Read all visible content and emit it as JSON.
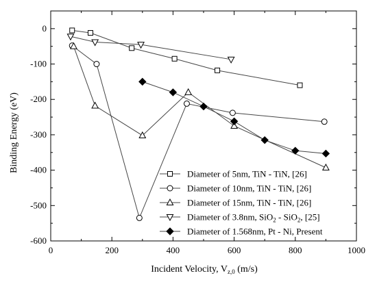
{
  "chart_data": {
    "type": "scatter",
    "xlabel": "Incident Velocity, V",
    "xlabel_sub": "z,0",
    "xlabel_unit": " (m/s)",
    "ylabel": "Binding Energy (eV)",
    "xlim": [
      0,
      1000
    ],
    "ylim": [
      -600,
      50
    ],
    "x_ticks": [
      0,
      200,
      400,
      600,
      800,
      1000
    ],
    "y_ticks": [
      0,
      -100,
      -200,
      -300,
      -400,
      -500,
      -600
    ],
    "x_tick_labels": [
      "0",
      "200",
      "400",
      "600",
      "800",
      "1000"
    ],
    "y_tick_labels": [
      "0",
      "-100",
      "-200",
      "-300",
      "-400",
      "-500",
      "-600"
    ],
    "grid": false,
    "legend_position": "bottom-right",
    "series": [
      {
        "name": "Diameter of 5nm, TiN - TiN, [26]",
        "marker": "square-open",
        "x": [
          70,
          130,
          265,
          405,
          545,
          815
        ],
        "y": [
          -5,
          -12,
          -55,
          -85,
          -118,
          -160
        ]
      },
      {
        "name": "Diameter of 10nm, TiN - TiN, [26]",
        "marker": "circle-open",
        "x": [
          70,
          150,
          290,
          445,
          595,
          895
        ],
        "y": [
          -48,
          -100,
          -535,
          -212,
          -238,
          -263
        ]
      },
      {
        "name": "Diameter of 15nm, TiN - TiN, [26]",
        "marker": "triangle-up-open",
        "x": [
          75,
          145,
          300,
          450,
          600,
          900
        ],
        "y": [
          -50,
          -218,
          -302,
          -180,
          -275,
          -393
        ]
      },
      {
        "name": "Diameter of  3.8nm, SiO",
        "name_sub": "2",
        "name_mid": " - SiO",
        "name_sub2": "2",
        "name_end": ", [25]",
        "marker": "triangle-down-open",
        "x": [
          65,
          145,
          295,
          590
        ],
        "y": [
          -22,
          -38,
          -45,
          -87
        ]
      },
      {
        "name": "Diameter of  1.568nm, Pt - Ni, Present",
        "marker": "diamond-filled",
        "x": [
          300,
          400,
          500,
          600,
          700,
          800,
          900
        ],
        "y": [
          -150,
          -180,
          -220,
          -262,
          -315,
          -345,
          -353
        ]
      }
    ]
  }
}
